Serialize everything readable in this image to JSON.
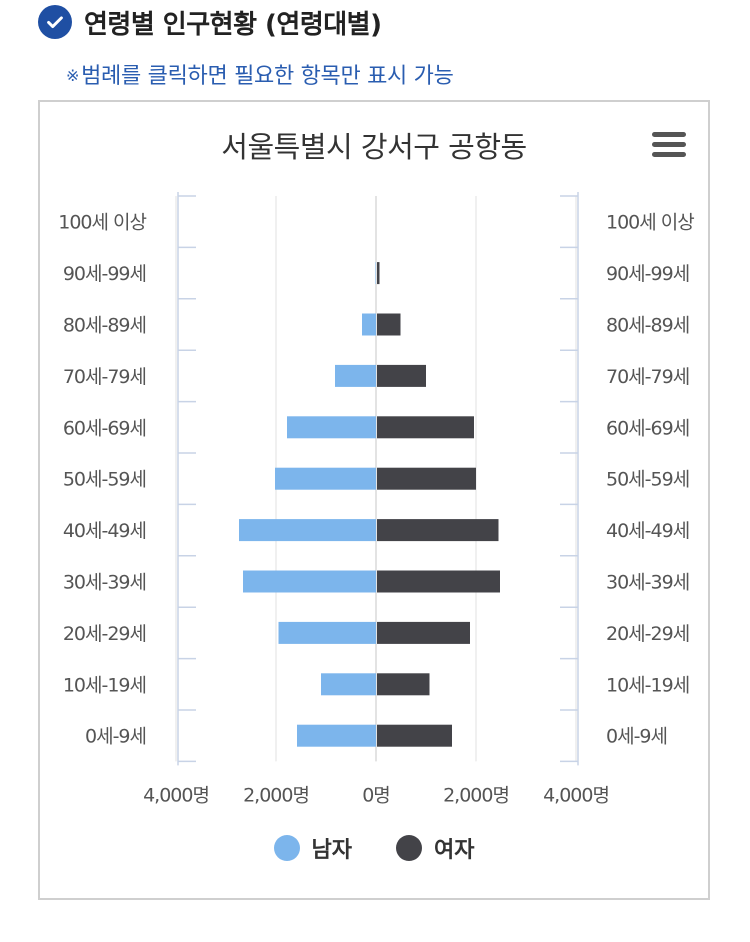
{
  "header": {
    "title": "연령별 인구현황 (연령대별)",
    "notice_mark": "※",
    "notice": "범례를 클릭하면 필요한 항목만 표시 가능"
  },
  "icons": {
    "check": "check-circle-icon",
    "menu": "hamburger-menu-icon"
  },
  "chart_data": {
    "type": "bar",
    "orientation": "horizontal-population-pyramid",
    "title": "서울특별시 강서구 공항동",
    "categories": [
      "100세 이상",
      "90세-99세",
      "80세-89세",
      "70세-79세",
      "60세-69세",
      "50세-59세",
      "40세-49세",
      "30세-39세",
      "20세-29세",
      "10세-19세",
      "0세-9세"
    ],
    "series": [
      {
        "name": "남자",
        "color": "#7cb5ec",
        "values": [
          0,
          10,
          280,
          820,
          1780,
          2020,
          2740,
          2660,
          1950,
          1100,
          1580
        ]
      },
      {
        "name": "여자",
        "color": "#434348",
        "values": [
          0,
          50,
          470,
          980,
          1940,
          1980,
          2430,
          2460,
          1860,
          1050,
          1500
        ]
      }
    ],
    "x_ticks": [
      "4,000명",
      "2,000명",
      "0명",
      "2,000명",
      "4,000명"
    ],
    "xlim": [
      -4000,
      4000
    ],
    "grid": true,
    "legend_position": "bottom-center"
  }
}
